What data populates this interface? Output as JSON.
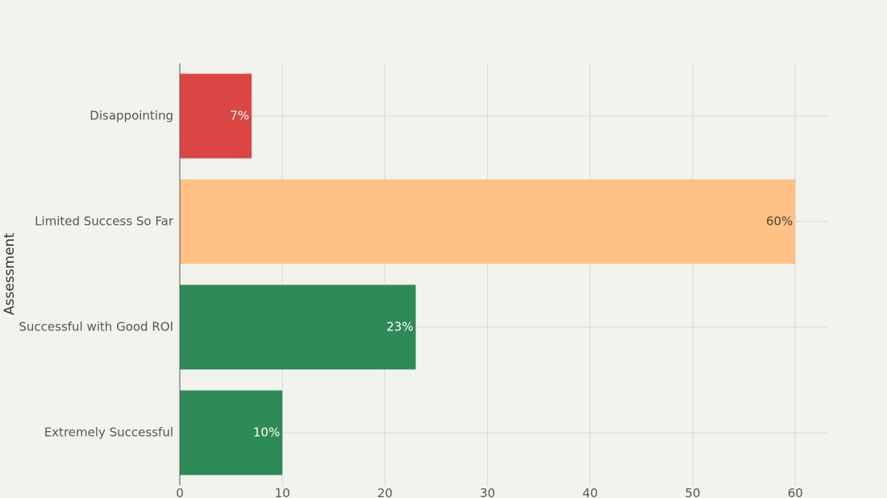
{
  "chart_data": {
    "type": "bar",
    "orientation": "horizontal",
    "y_label": "Assessment",
    "categories": [
      "Disappointing",
      "Limited Success So Far",
      "Successful with Good ROI",
      "Extremely Successful"
    ],
    "values": [
      7,
      60,
      23,
      10
    ],
    "value_labels": [
      "7%",
      "60%",
      "23%",
      "10%"
    ],
    "colors": [
      "#db4545",
      "#ffc185",
      "#2e8b57",
      "#2e8b57"
    ],
    "xlim": [
      0,
      63.2
    ],
    "xticks": [
      0,
      10,
      20,
      30,
      40,
      50,
      60
    ],
    "grid": true
  }
}
